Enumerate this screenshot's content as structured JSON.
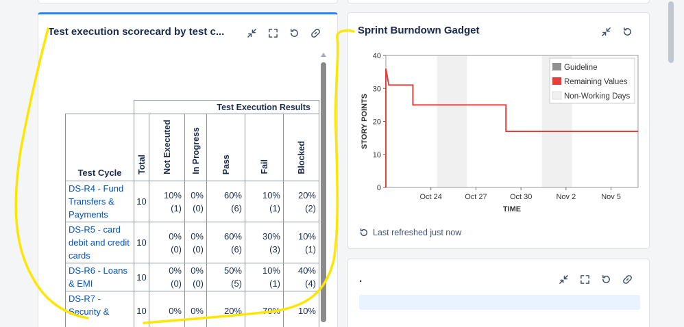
{
  "scorecard": {
    "title": "Test execution scorecard by test c...",
    "group_header": "Test Execution Results",
    "columns": {
      "cycle": "Test Cycle",
      "total": "Total",
      "not_executed": "Not Executed",
      "in_progress": "In Progress",
      "pass": "Pass",
      "fail": "Fail",
      "blocked": "Blocked"
    },
    "rows": [
      {
        "cycle": "DS-R4 - Fund Transfers & Payments",
        "total": "10",
        "ne_pct": "10%",
        "ne_cnt": "(1)",
        "ip_pct": "0%",
        "ip_cnt": "(0)",
        "pass_pct": "60%",
        "pass_cnt": "(6)",
        "fail_pct": "10%",
        "fail_cnt": "(1)",
        "blk_pct": "20%",
        "blk_cnt": "(2)"
      },
      {
        "cycle": "DS-R5 - card debit and credit cards",
        "total": "10",
        "ne_pct": "0%",
        "ne_cnt": "(0)",
        "ip_pct": "0%",
        "ip_cnt": "(0)",
        "pass_pct": "60%",
        "pass_cnt": "(6)",
        "fail_pct": "30%",
        "fail_cnt": "(3)",
        "blk_pct": "10%",
        "blk_cnt": "(1)"
      },
      {
        "cycle": "DS-R6 - Loans & EMI",
        "total": "10",
        "ne_pct": "0%",
        "ne_cnt": "(0)",
        "ip_pct": "0%",
        "ip_cnt": "(0)",
        "pass_pct": "50%",
        "pass_cnt": "(5)",
        "fail_pct": "10%",
        "fail_cnt": "(1)",
        "blk_pct": "40%",
        "blk_cnt": "(4)"
      },
      {
        "cycle": "DS-R7 - Security &",
        "total": "10",
        "ne_pct": "0%",
        "ne_cnt": "",
        "ip_pct": "0%",
        "ip_cnt": "",
        "pass_pct": "20%",
        "pass_cnt": "",
        "fail_pct": "70%",
        "fail_cnt": "",
        "blk_pct": "10%",
        "blk_cnt": ""
      }
    ]
  },
  "burndown": {
    "title": "Sprint Burndown Gadget",
    "refresh_text": "Last refreshed just now"
  },
  "third": {
    "title": "."
  },
  "colors": {
    "accent": "#2684ff",
    "remaining": "#e5403b",
    "guideline": "#8f8f8f",
    "nonworking": "#f0f0f0",
    "annotation": "#ffe600"
  },
  "chart_data": {
    "type": "line",
    "xlabel": "TIME",
    "ylabel": "STORY POINTS",
    "ylim": [
      0,
      40
    ],
    "yticks": [
      0,
      10,
      20,
      30,
      40
    ],
    "xticks": [
      "Oct 24",
      "Oct 27",
      "Oct 30",
      "Nov 2",
      "Nov 5"
    ],
    "legend": [
      "Guideline",
      "Remaining Values",
      "Non-Working Days"
    ],
    "legend_position": "top-right",
    "series": [
      {
        "name": "Remaining Values",
        "x_days": [
          0,
          0,
          0.2,
          1.8,
          1.8,
          8,
          8,
          16.8
        ],
        "y": [
          0,
          36,
          31,
          31,
          25,
          25,
          17,
          17
        ]
      }
    ],
    "x_start": "Oct 21",
    "nonworking_ranges_days": [
      [
        3.4,
        5.4
      ],
      [
        10.4,
        12.4
      ]
    ]
  }
}
